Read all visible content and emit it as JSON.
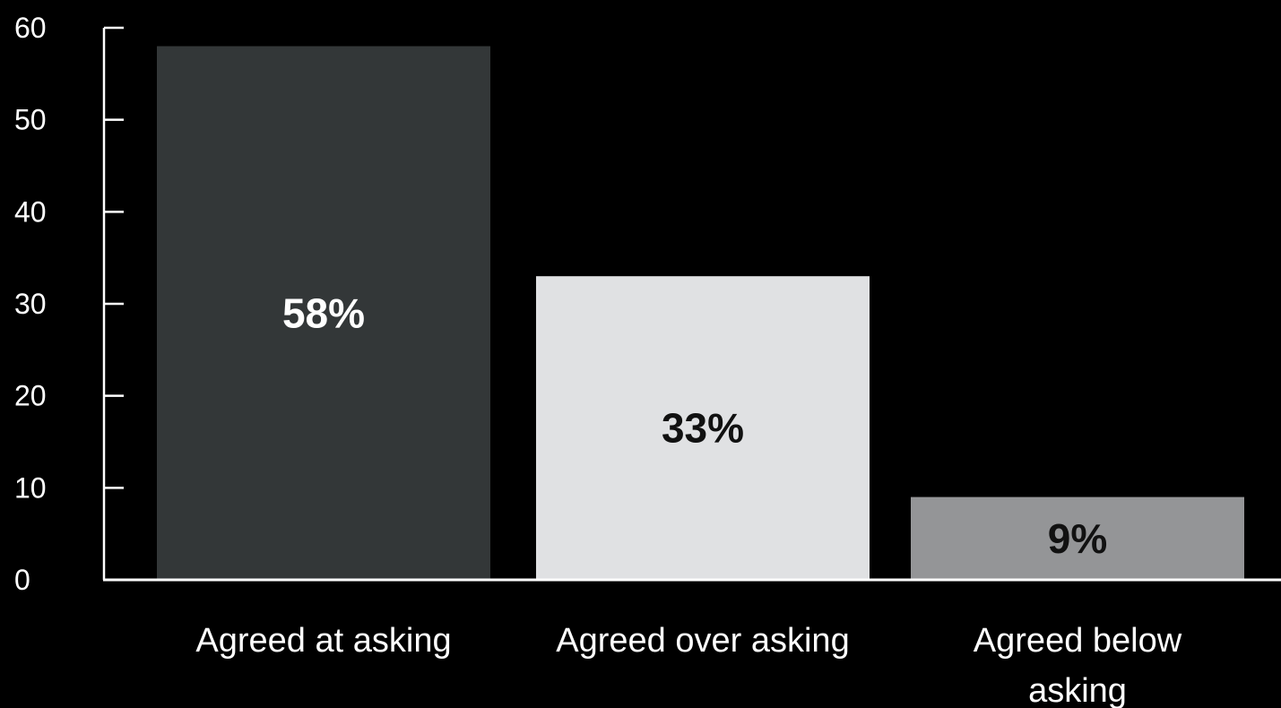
{
  "chart_data": {
    "type": "bar",
    "categories": [
      "Agreed at asking",
      "Agreed over asking",
      "Agreed below asking"
    ],
    "category_label_lines": [
      [
        "Agreed at asking"
      ],
      [
        "Agreed over asking"
      ],
      [
        "Agreed below",
        "asking"
      ]
    ],
    "values": [
      58,
      33,
      9
    ],
    "data_labels": [
      "58%",
      "33%",
      "9%"
    ],
    "bar_colors": [
      "#333738",
      "#e0e1e3",
      "#949597"
    ],
    "data_label_colors": [
      "#ffffff",
      "#111111",
      "#111111"
    ],
    "y_ticks": [
      "0",
      "10",
      "20",
      "30",
      "40",
      "50",
      "60"
    ],
    "ylim": [
      0,
      60
    ],
    "grid": false,
    "legend": "none",
    "title": "",
    "xlabel": "",
    "ylabel": "",
    "background_color": "#000000",
    "axis_color": "#ffffff"
  }
}
